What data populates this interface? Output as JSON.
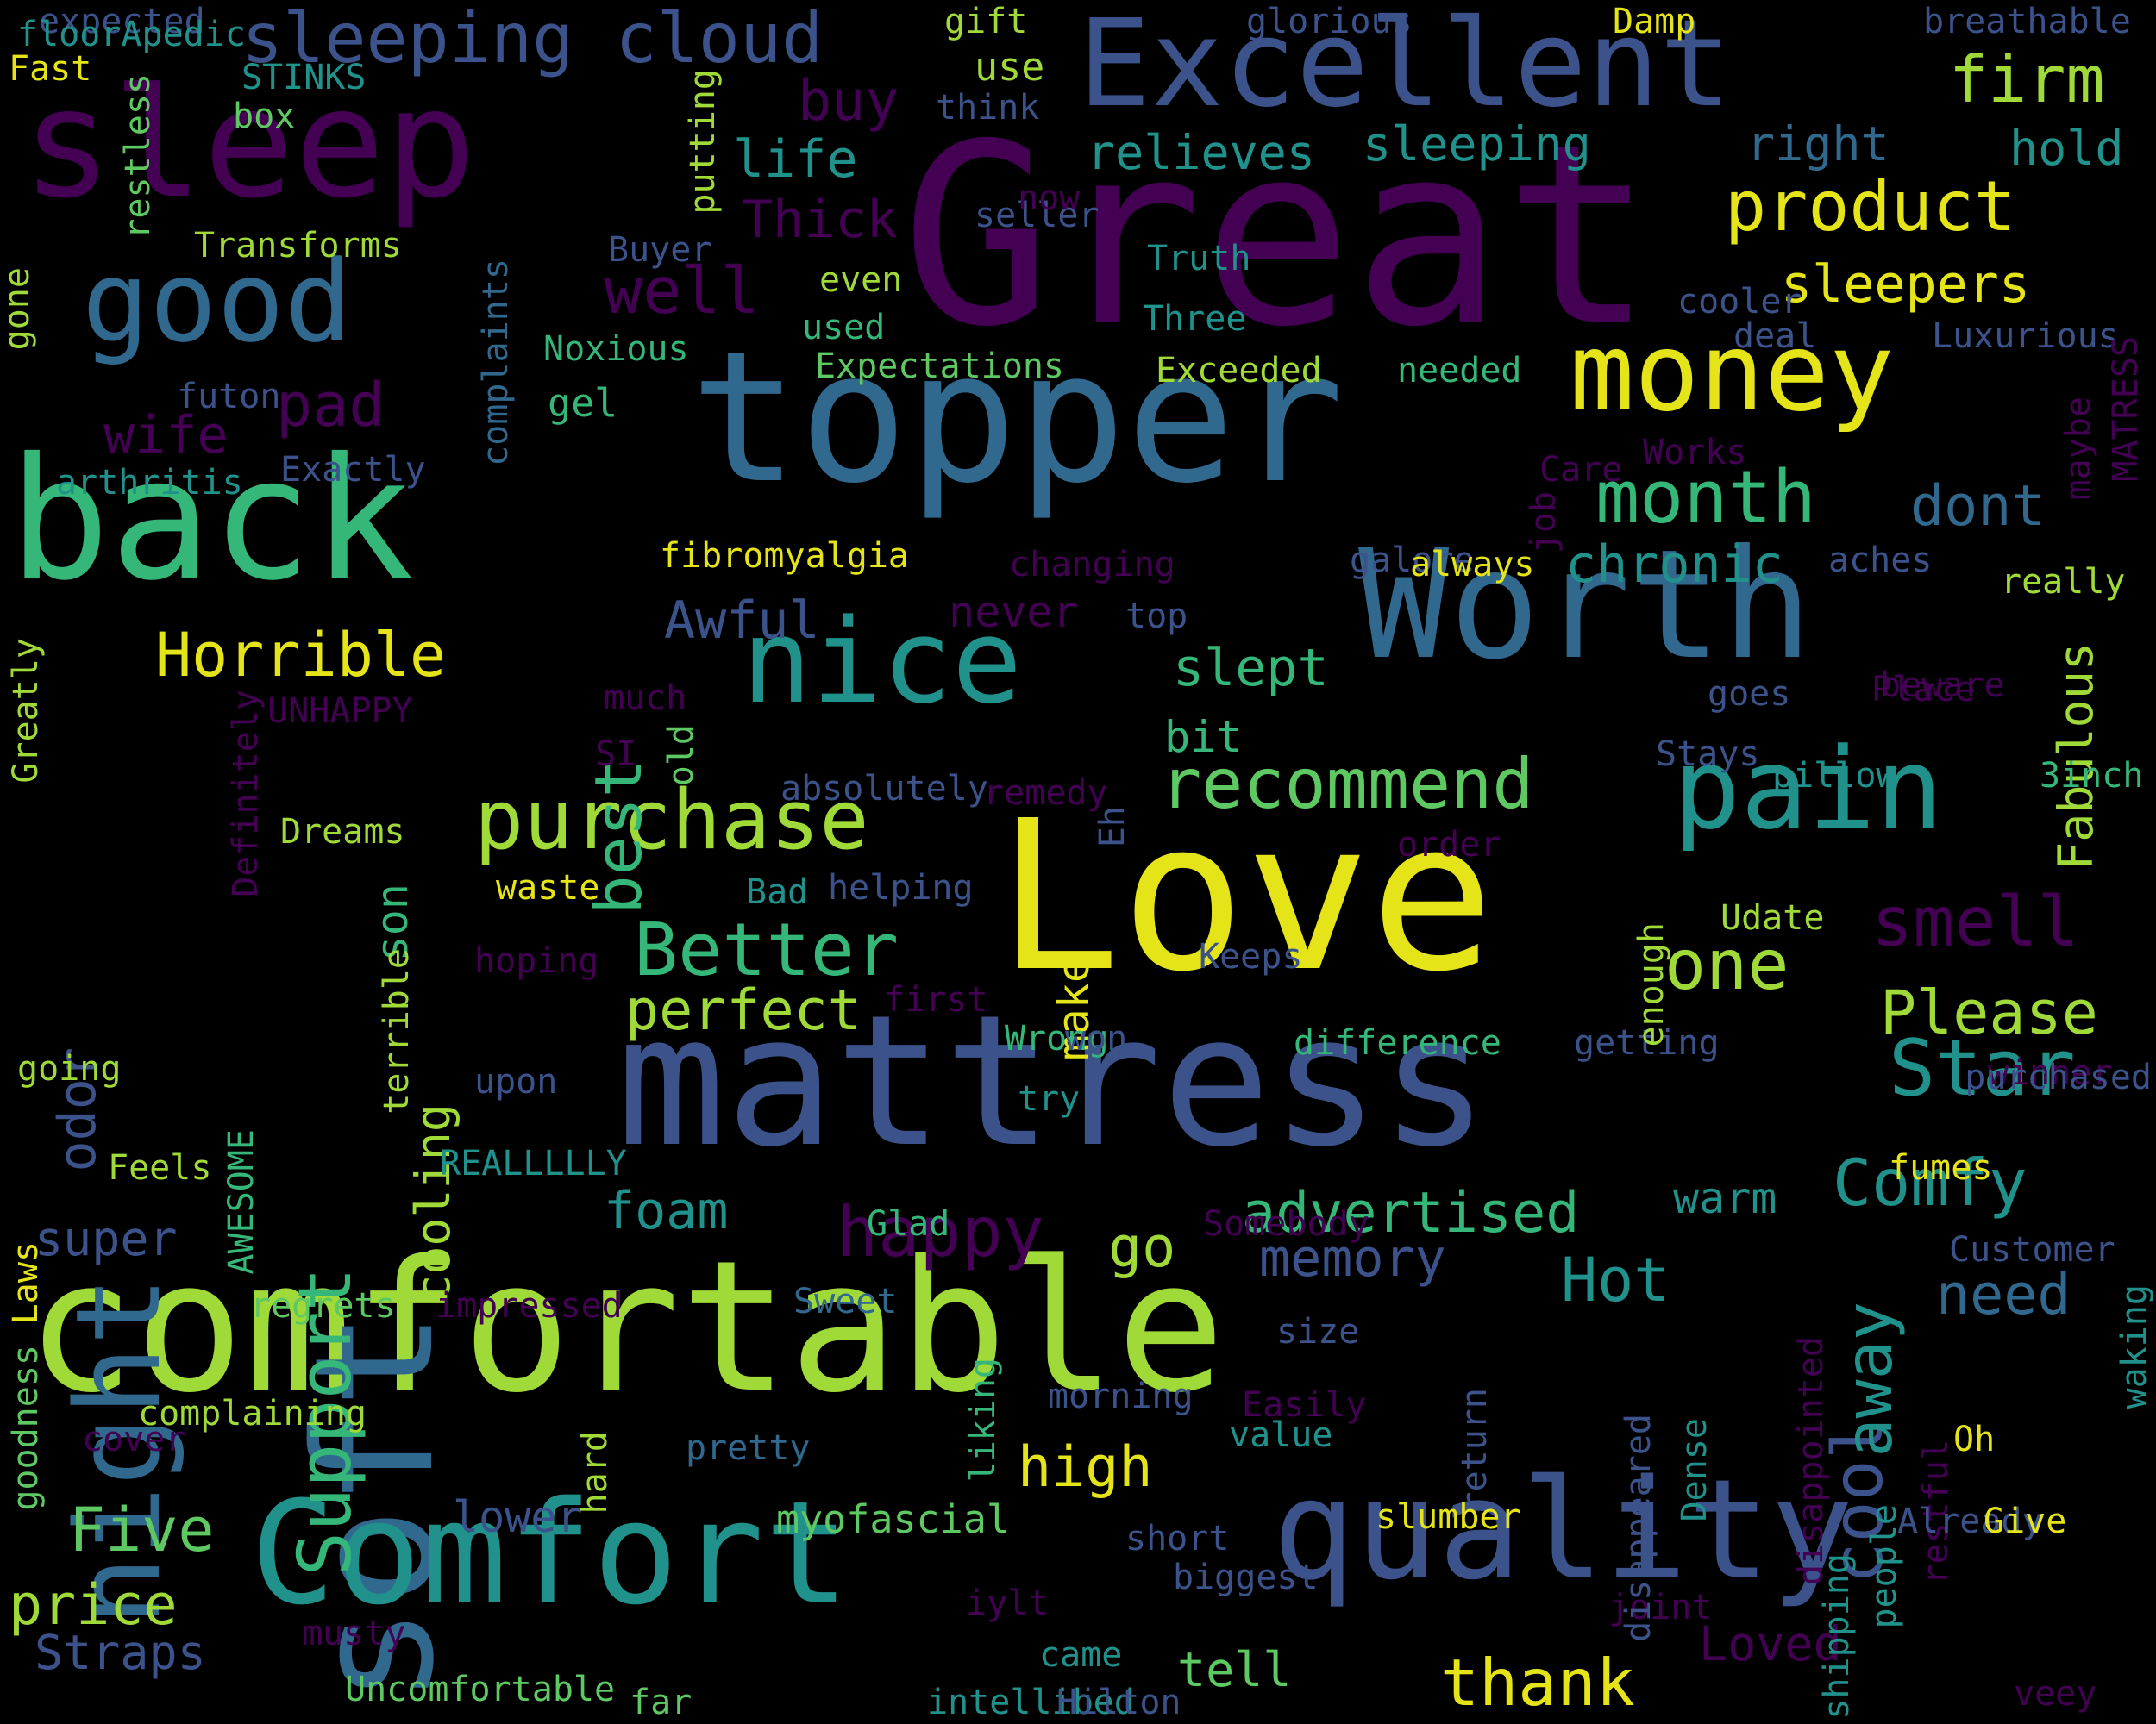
{
  "colors": {
    "background": "#000000",
    "palette": [
      "#440154",
      "#3b528b",
      "#31688e",
      "#21918c",
      "#35b779",
      "#5ec962",
      "#a0da39",
      "#e5e419"
    ]
  },
  "words": [
    {
      "text": "Great"
    },
    {
      "text": "comfortable"
    },
    {
      "text": "mattress"
    },
    {
      "text": "topper"
    },
    {
      "text": "Love"
    },
    {
      "text": "Worth"
    },
    {
      "text": "soft"
    },
    {
      "text": "sleep"
    },
    {
      "text": "back"
    },
    {
      "text": "Comfort"
    },
    {
      "text": "quality"
    },
    {
      "text": "Excellent"
    },
    {
      "text": "night"
    },
    {
      "text": "nice"
    },
    {
      "text": "pain"
    },
    {
      "text": "money"
    },
    {
      "text": "good"
    },
    {
      "text": "sleeping cloud"
    },
    {
      "text": "purchase"
    },
    {
      "text": "recommend"
    },
    {
      "text": "product"
    },
    {
      "text": "Better"
    },
    {
      "text": "month"
    },
    {
      "text": "Star"
    },
    {
      "text": "smell"
    },
    {
      "text": "Support"
    },
    {
      "text": "happy"
    },
    {
      "text": "Comfy"
    },
    {
      "text": "Horrible"
    },
    {
      "text": "best"
    },
    {
      "text": "one"
    },
    {
      "text": "Please"
    },
    {
      "text": "advertised"
    },
    {
      "text": "foam"
    },
    {
      "text": "cool"
    },
    {
      "text": "away"
    },
    {
      "text": "thank"
    },
    {
      "text": "high"
    },
    {
      "text": "Five"
    },
    {
      "text": "price"
    },
    {
      "text": "go"
    },
    {
      "text": "memory"
    },
    {
      "text": "Hot"
    },
    {
      "text": "need"
    },
    {
      "text": "perfect"
    },
    {
      "text": "chronic"
    },
    {
      "text": "dont"
    },
    {
      "text": "Awful"
    },
    {
      "text": "slept"
    },
    {
      "text": "well"
    },
    {
      "text": "sleepers"
    },
    {
      "text": "firm"
    },
    {
      "text": "buy"
    },
    {
      "text": "pad"
    },
    {
      "text": "life"
    },
    {
      "text": "Thick"
    },
    {
      "text": "relieves"
    },
    {
      "text": "sleeping"
    },
    {
      "text": "right"
    },
    {
      "text": "hold"
    },
    {
      "text": "wife"
    },
    {
      "text": "Fabulous"
    },
    {
      "text": "cooling"
    },
    {
      "text": "son"
    },
    {
      "text": "odor"
    },
    {
      "text": "super"
    },
    {
      "text": "Straps"
    },
    {
      "text": "Loved"
    },
    {
      "text": "tell"
    },
    {
      "text": "warm"
    },
    {
      "text": "lower"
    },
    {
      "text": "myofascial"
    },
    {
      "text": "slumber"
    },
    {
      "text": "Uncomfortable"
    },
    {
      "text": "make"
    },
    {
      "text": "bit"
    },
    {
      "text": "gel"
    },
    {
      "text": "never"
    },
    {
      "text": "fibromyalgia"
    },
    {
      "text": "Transforms"
    },
    {
      "text": "Exceeded"
    },
    {
      "text": "Expectations"
    },
    {
      "text": "needed"
    },
    {
      "text": "Truth"
    },
    {
      "text": "Three"
    },
    {
      "text": "even"
    },
    {
      "text": "used"
    },
    {
      "text": "use"
    },
    {
      "text": "think"
    },
    {
      "text": "seller"
    },
    {
      "text": "now"
    },
    {
      "text": "Buyer"
    },
    {
      "text": "gift"
    },
    {
      "text": "expected"
    },
    {
      "text": "Fast"
    },
    {
      "text": "STINKS"
    },
    {
      "text": "box"
    },
    {
      "text": "restless"
    },
    {
      "text": "putting"
    },
    {
      "text": "gone"
    },
    {
      "text": "complaints"
    },
    {
      "text": "Noxious"
    },
    {
      "text": "futon"
    },
    {
      "text": "arthritis"
    },
    {
      "text": "Exactly"
    },
    {
      "text": "Greatly"
    },
    {
      "text": "Definitely"
    },
    {
      "text": "UNHAPPY"
    },
    {
      "text": "much"
    },
    {
      "text": "old"
    },
    {
      "text": "SI"
    },
    {
      "text": "absolutely"
    },
    {
      "text": "remedy"
    },
    {
      "text": "Dreams"
    },
    {
      "text": "waste"
    },
    {
      "text": "Bad"
    },
    {
      "text": "helping"
    },
    {
      "text": "hoping"
    },
    {
      "text": "terrible"
    },
    {
      "text": "first"
    },
    {
      "text": "Wrong"
    },
    {
      "text": "won"
    },
    {
      "text": "difference"
    },
    {
      "text": "getting"
    },
    {
      "text": "upon"
    },
    {
      "text": "try"
    },
    {
      "text": "going"
    },
    {
      "text": "AWESOME"
    },
    {
      "text": "Feels"
    },
    {
      "text": "REALLLLLY"
    },
    {
      "text": "Laws"
    },
    {
      "text": "Glad"
    },
    {
      "text": "Somebody"
    },
    {
      "text": "goodness"
    },
    {
      "text": "regrets"
    },
    {
      "text": "impressed"
    },
    {
      "text": "Sweet"
    },
    {
      "text": "complaining"
    },
    {
      "text": "cover"
    },
    {
      "text": "pretty"
    },
    {
      "text": "hard"
    },
    {
      "text": "liking"
    },
    {
      "text": "morning"
    },
    {
      "text": "Easily"
    },
    {
      "text": "value"
    },
    {
      "text": "size"
    },
    {
      "text": "short"
    },
    {
      "text": "biggest"
    },
    {
      "text": "joint"
    },
    {
      "text": "iylt"
    },
    {
      "text": "musty"
    },
    {
      "text": "came"
    },
    {
      "text": "far"
    },
    {
      "text": "intellibed"
    },
    {
      "text": "Hilton"
    },
    {
      "text": "return"
    },
    {
      "text": "disappeared"
    },
    {
      "text": "Dense"
    },
    {
      "text": "disappointed"
    },
    {
      "text": "shipping"
    },
    {
      "text": "people"
    },
    {
      "text": "restful"
    },
    {
      "text": "Already"
    },
    {
      "text": "Give"
    },
    {
      "text": "Oh"
    },
    {
      "text": "waking"
    },
    {
      "text": "Customer"
    },
    {
      "text": "fumes"
    },
    {
      "text": "winner"
    },
    {
      "text": "purchased"
    },
    {
      "text": "veey"
    },
    {
      "text": "Damp"
    },
    {
      "text": "breathable"
    },
    {
      "text": "glorious"
    },
    {
      "text": "cooler"
    },
    {
      "text": "deal"
    },
    {
      "text": "Luxurious"
    },
    {
      "text": "MATRESS"
    },
    {
      "text": "maybe"
    },
    {
      "text": "Care"
    },
    {
      "text": "Works"
    },
    {
      "text": "aches"
    },
    {
      "text": "really"
    },
    {
      "text": "job"
    },
    {
      "text": "beware"
    },
    {
      "text": "goes"
    },
    {
      "text": "Place"
    },
    {
      "text": "Stays"
    },
    {
      "text": "pillow"
    },
    {
      "text": "3inch"
    },
    {
      "text": "order"
    },
    {
      "text": "Udate"
    },
    {
      "text": "enough"
    },
    {
      "text": "Keeps"
    },
    {
      "text": "Eh"
    },
    {
      "text": "changing"
    },
    {
      "text": "galore"
    },
    {
      "text": "always"
    },
    {
      "text": "top"
    },
    {
      "text": "floorApedic"
    }
  ]
}
